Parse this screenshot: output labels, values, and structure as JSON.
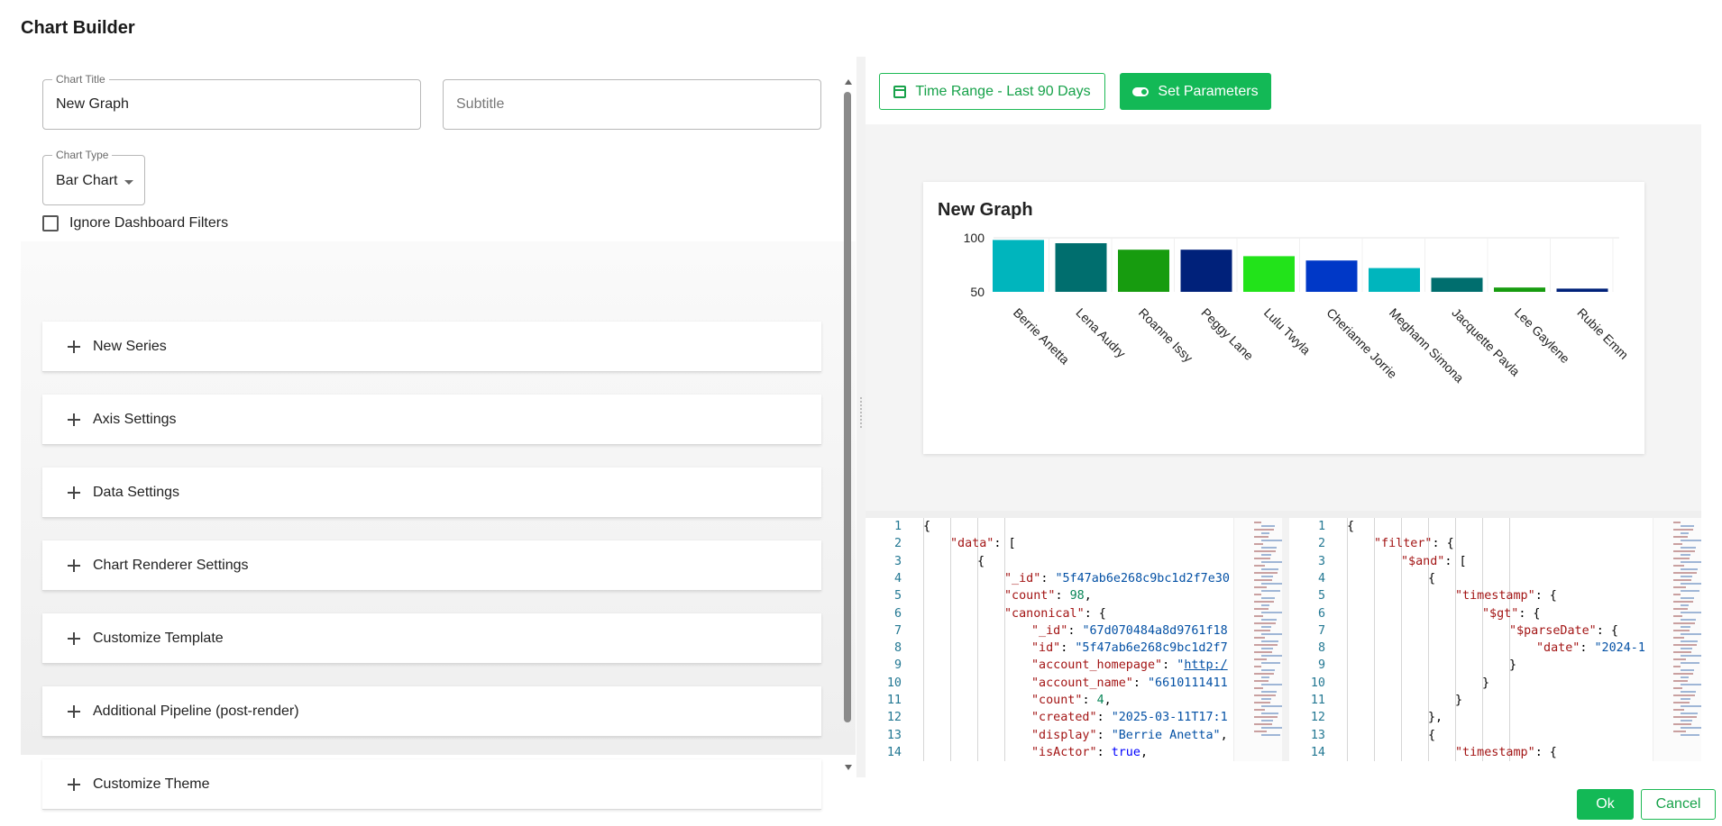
{
  "dialog": {
    "title": "Chart Builder"
  },
  "form": {
    "chart_title": {
      "label": "Chart Title",
      "value": "New Graph"
    },
    "subtitle": {
      "placeholder": "Subtitle",
      "value": ""
    },
    "chart_type": {
      "label": "Chart Type",
      "value": "Bar Chart"
    },
    "ignore_filters": {
      "label": "Ignore Dashboard Filters",
      "checked": false
    },
    "sections": [
      {
        "label": "New Series"
      },
      {
        "label": "Axis Settings"
      },
      {
        "label": "Data Settings"
      },
      {
        "label": "Chart Renderer Settings"
      },
      {
        "label": "Customize Template"
      },
      {
        "label": "Additional Pipeline (post-render)"
      },
      {
        "label": "Customize Theme"
      }
    ]
  },
  "toolbar": {
    "time_range_label": "Time Range - Last 90 Days",
    "time_range_icon": "calendar-icon",
    "set_params_label": "Set Parameters",
    "set_params_icon": "toggle-icon"
  },
  "chart_data": {
    "type": "bar",
    "title": "New Graph",
    "categories": [
      "Berrie Anetta",
      "Lena Audry",
      "Roanne Issy",
      "Peggy Lane",
      "Lulu Twyla",
      "Cherianne Jorrie",
      "Meghann Simona",
      "Jacquette Pavla",
      "Lee Gaylene",
      "Rubie Emm"
    ],
    "values": [
      98,
      95,
      89,
      89,
      83,
      79,
      72,
      63,
      54,
      53
    ],
    "colors": [
      "#00b5bd",
      "#006e6e",
      "#179c0f",
      "#00217a",
      "#22e31a",
      "#0038c7",
      "#00b5bd",
      "#006e6e",
      "#179c0f",
      "#00217a"
    ],
    "yticks": [
      "100",
      "50"
    ],
    "ylim": [
      50,
      100
    ],
    "grid": true,
    "xlabel": "",
    "ylabel": ""
  },
  "editor_left": {
    "lines": [
      {
        "num": "1",
        "indent": 0,
        "parts": [
          [
            "p",
            "{"
          ]
        ]
      },
      {
        "num": "2",
        "indent": 1,
        "parts": [
          [
            "k",
            "\"data\""
          ],
          [
            "p",
            ": ["
          ]
        ]
      },
      {
        "num": "3",
        "indent": 2,
        "parts": [
          [
            "p",
            "{"
          ]
        ]
      },
      {
        "num": "4",
        "indent": 3,
        "parts": [
          [
            "k",
            "\"_id\""
          ],
          [
            "p",
            ": "
          ],
          [
            "s",
            "\"5f47ab6e268c9bc1d2f7e30"
          ]
        ]
      },
      {
        "num": "5",
        "indent": 3,
        "parts": [
          [
            "k",
            "\"count\""
          ],
          [
            "p",
            ": "
          ],
          [
            "n",
            "98"
          ],
          [
            "p",
            ","
          ]
        ]
      },
      {
        "num": "6",
        "indent": 3,
        "parts": [
          [
            "k",
            "\"canonical\""
          ],
          [
            "p",
            ": {"
          ]
        ]
      },
      {
        "num": "7",
        "indent": 4,
        "parts": [
          [
            "k",
            "\"_id\""
          ],
          [
            "p",
            ": "
          ],
          [
            "s",
            "\"67d070484a8d9761f18"
          ]
        ]
      },
      {
        "num": "8",
        "indent": 4,
        "parts": [
          [
            "k",
            "\"id\""
          ],
          [
            "p",
            ": "
          ],
          [
            "s",
            "\"5f47ab6e268c9bc1d2f7"
          ]
        ]
      },
      {
        "num": "9",
        "indent": 4,
        "parts": [
          [
            "k",
            "\"account_homepage\""
          ],
          [
            "p",
            ": "
          ],
          [
            "s",
            "\""
          ],
          [
            "u",
            "http:/"
          ]
        ]
      },
      {
        "num": "10",
        "indent": 4,
        "parts": [
          [
            "k",
            "\"account_name\""
          ],
          [
            "p",
            ": "
          ],
          [
            "s",
            "\"6610111411"
          ]
        ]
      },
      {
        "num": "11",
        "indent": 4,
        "parts": [
          [
            "k",
            "\"count\""
          ],
          [
            "p",
            ": "
          ],
          [
            "n",
            "4"
          ],
          [
            "p",
            ","
          ]
        ]
      },
      {
        "num": "12",
        "indent": 4,
        "parts": [
          [
            "k",
            "\"created\""
          ],
          [
            "p",
            ": "
          ],
          [
            "s",
            "\"2025-03-11T17:1"
          ]
        ]
      },
      {
        "num": "13",
        "indent": 4,
        "parts": [
          [
            "k",
            "\"display\""
          ],
          [
            "p",
            ": "
          ],
          [
            "s",
            "\"Berrie Anetta\""
          ],
          [
            "p",
            ","
          ]
        ]
      },
      {
        "num": "14",
        "indent": 4,
        "parts": [
          [
            "k",
            "\"isActor\""
          ],
          [
            "p",
            ": "
          ],
          [
            "b",
            "true"
          ],
          [
            "p",
            ","
          ]
        ]
      }
    ]
  },
  "editor_right": {
    "lines": [
      {
        "num": "1",
        "indent": 0,
        "parts": [
          [
            "p",
            "{"
          ]
        ]
      },
      {
        "num": "2",
        "indent": 1,
        "parts": [
          [
            "k",
            "\"filter\""
          ],
          [
            "p",
            ": {"
          ]
        ]
      },
      {
        "num": "3",
        "indent": 2,
        "parts": [
          [
            "k",
            "\"$and\""
          ],
          [
            "p",
            ": ["
          ]
        ]
      },
      {
        "num": "4",
        "indent": 3,
        "parts": [
          [
            "p",
            "{"
          ]
        ]
      },
      {
        "num": "5",
        "indent": 4,
        "parts": [
          [
            "k",
            "\"timestamp\""
          ],
          [
            "p",
            ": {"
          ]
        ]
      },
      {
        "num": "6",
        "indent": 5,
        "parts": [
          [
            "k",
            "\"$gt\""
          ],
          [
            "p",
            ": {"
          ]
        ]
      },
      {
        "num": "7",
        "indent": 6,
        "parts": [
          [
            "k",
            "\"$parseDate\""
          ],
          [
            "p",
            ": {"
          ]
        ]
      },
      {
        "num": "8",
        "indent": 7,
        "parts": [
          [
            "k",
            "\"date\""
          ],
          [
            "p",
            ": "
          ],
          [
            "s",
            "\"2024-1"
          ]
        ]
      },
      {
        "num": "9",
        "indent": 6,
        "parts": [
          [
            "p",
            "}"
          ]
        ]
      },
      {
        "num": "10",
        "indent": 5,
        "parts": [
          [
            "p",
            "}"
          ]
        ]
      },
      {
        "num": "11",
        "indent": 4,
        "parts": [
          [
            "p",
            "}"
          ]
        ]
      },
      {
        "num": "12",
        "indent": 3,
        "parts": [
          [
            "p",
            "},"
          ]
        ]
      },
      {
        "num": "13",
        "indent": 3,
        "parts": [
          [
            "p",
            "{"
          ]
        ]
      },
      {
        "num": "14",
        "indent": 4,
        "parts": [
          [
            "k",
            "\"timestamp\""
          ],
          [
            "p",
            ": {"
          ]
        ]
      }
    ]
  },
  "footer": {
    "ok_label": "Ok",
    "cancel_label": "Cancel"
  }
}
